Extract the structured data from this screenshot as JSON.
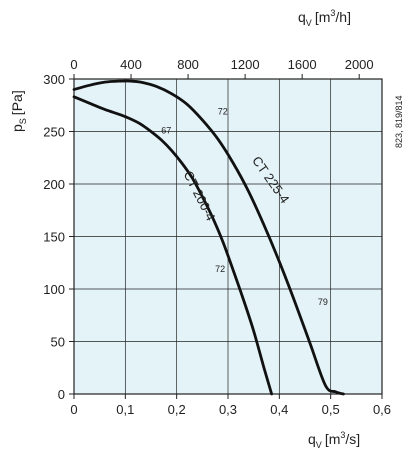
{
  "chart_data": {
    "type": "line",
    "x_bottom_label": "q",
    "x_bottom_sub": "V",
    "x_bottom_unit": "[m",
    "x_bottom_sup": "3",
    "x_bottom_unit_end": "/s]",
    "x_top_label": "q",
    "x_top_sub": "V",
    "x_top_unit": "[m",
    "x_top_sup": "3",
    "x_top_unit_end": "/h]",
    "y_label": "p",
    "y_sub": "S",
    "y_unit": "[Pa]",
    "side_note": "823, 819/814",
    "xlim": [
      0,
      0.6
    ],
    "ylim": [
      0,
      300
    ],
    "x_ticks": [
      "0",
      "0,1",
      "0,2",
      "0,3",
      "0,4",
      "0,5",
      "0,6"
    ],
    "x_tick_values": [
      0,
      0.1,
      0.2,
      0.3,
      0.4,
      0.5,
      0.6
    ],
    "y_ticks": [
      "0",
      "50",
      "100",
      "150",
      "200",
      "250",
      "300"
    ],
    "y_tick_values": [
      0,
      50,
      100,
      150,
      200,
      250,
      300
    ],
    "top_ticks": [
      "0",
      "400",
      "800",
      "1200",
      "1600",
      "2000"
    ],
    "top_tick_values_m3h": [
      0,
      400,
      800,
      1200,
      1600,
      2000
    ],
    "grid": true,
    "background_color": "#e4f3f8",
    "grid_color": "#222222",
    "curve_color": "#111111",
    "series": [
      {
        "name": "CT 200-4",
        "x": [
          0,
          0.03,
          0.06,
          0.09,
          0.11,
          0.13,
          0.15,
          0.17,
          0.19,
          0.21,
          0.23,
          0.25,
          0.27,
          0.29,
          0.31,
          0.33,
          0.35,
          0.37,
          0.385
        ],
        "y": [
          283,
          277,
          271,
          266,
          262,
          257,
          250,
          242,
          232,
          220,
          206,
          188,
          168,
          145,
          118,
          90,
          60,
          25,
          0
        ]
      },
      {
        "name": "CT 225-4",
        "x": [
          0,
          0.03,
          0.06,
          0.09,
          0.11,
          0.13,
          0.16,
          0.19,
          0.22,
          0.25,
          0.28,
          0.31,
          0.34,
          0.37,
          0.4,
          0.43,
          0.46,
          0.49,
          0.51,
          0.525
        ],
        "y": [
          290,
          294,
          297,
          298,
          298,
          297,
          293,
          286,
          276,
          261,
          243,
          220,
          193,
          161,
          126,
          88,
          48,
          8,
          2,
          0
        ]
      }
    ],
    "annotations": [
      {
        "text": "67",
        "x": 0.17,
        "y": 248
      },
      {
        "text": "72",
        "x": 0.275,
        "y": 116
      },
      {
        "text": "72",
        "x": 0.28,
        "y": 266
      },
      {
        "text": "79",
        "x": 0.475,
        "y": 85
      }
    ]
  }
}
